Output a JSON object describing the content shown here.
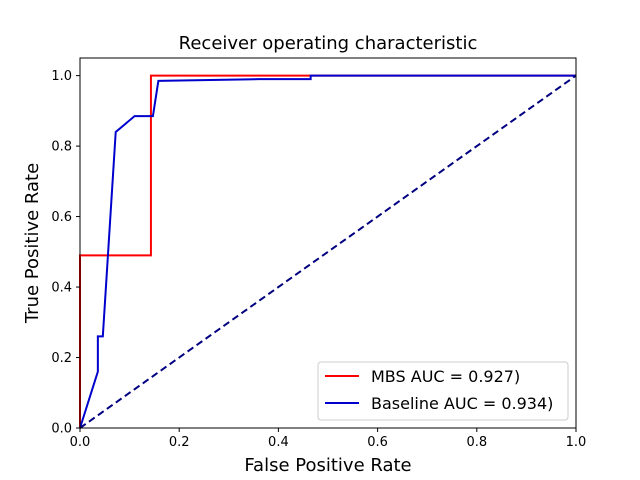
{
  "chart_data": {
    "type": "line",
    "title": "Receiver operating characteristic",
    "xlabel": "False Positive Rate",
    "ylabel": "True Positive Rate",
    "xlim": [
      0.0,
      1.0
    ],
    "ylim": [
      0.0,
      1.05
    ],
    "x_ticks": [
      "0.0",
      "0.2",
      "0.4",
      "0.6",
      "0.8",
      "1.0"
    ],
    "y_ticks": [
      "0.0",
      "0.2",
      "0.4",
      "0.6",
      "0.8",
      "1.0"
    ],
    "grid": false,
    "legend_position": "lower-right",
    "series": [
      {
        "name": "MBS AUC = 0.927)",
        "color": "#ff0000",
        "line_style": "solid",
        "x": [
          0.0,
          0.0,
          0.143,
          0.143,
          0.47,
          1.0
        ],
        "y": [
          0.0,
          0.49,
          0.49,
          1.0,
          1.0,
          1.0
        ]
      },
      {
        "name": "Baseline AUC = 0.934)",
        "color": "#0000cc",
        "line_style": "solid",
        "x": [
          0.0,
          0.036,
          0.036,
          0.046,
          0.072,
          0.11,
          0.147,
          0.158,
          0.36,
          0.465,
          0.465,
          1.0
        ],
        "y": [
          0.0,
          0.16,
          0.26,
          0.26,
          0.84,
          0.885,
          0.885,
          0.985,
          0.99,
          0.99,
          1.0,
          1.0
        ]
      },
      {
        "color": "#000080",
        "line_style": "dashed",
        "x": [
          0.0,
          1.0
        ],
        "y": [
          0.0,
          1.0
        ]
      }
    ]
  }
}
